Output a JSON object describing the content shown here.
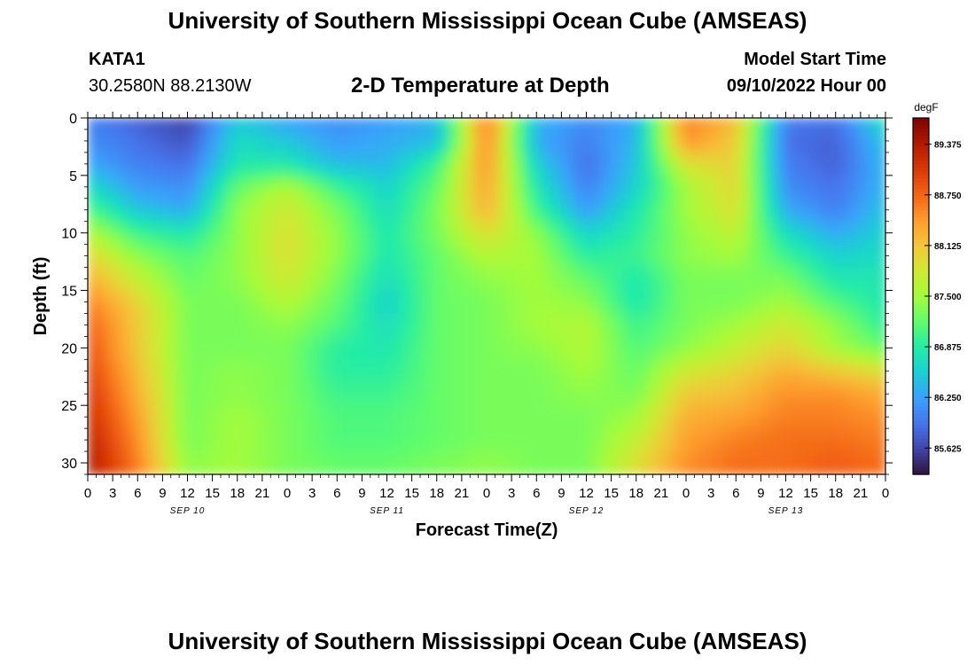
{
  "page": {
    "title": "University of Southern Mississippi Ocean Cube (AMSEAS)",
    "station_id": "KATA1",
    "coordinates": "30.2580N  88.2130W",
    "model_start_label": "Model Start Time",
    "model_start_value": "09/10/2022 Hour 00",
    "footer_title": "University of Southern Mississippi Ocean Cube (AMSEAS)"
  },
  "chart_data": {
    "type": "heatmap",
    "title": "2-D Temperature at Depth",
    "xlabel": "Forecast Time(Z)",
    "ylabel": "Depth (ft)",
    "x_range_hours": [
      0,
      96
    ],
    "x_tick_step_hours": 3,
    "x_tick_labels": [
      "0",
      "3",
      "6",
      "9",
      "12",
      "15",
      "18",
      "21",
      "0",
      "3",
      "6",
      "9",
      "12",
      "15",
      "18",
      "21",
      "0",
      "3",
      "6",
      "9",
      "12",
      "15",
      "18",
      "21",
      "0",
      "3",
      "6",
      "9",
      "12",
      "15",
      "18",
      "21",
      "0"
    ],
    "date_labels": [
      {
        "label": "SEP 10",
        "hour": 12
      },
      {
        "label": "SEP 11",
        "hour": 36
      },
      {
        "label": "SEP 12",
        "hour": 60
      },
      {
        "label": "SEP 13",
        "hour": 84
      }
    ],
    "y_range_ft": [
      0,
      31
    ],
    "y_ticks": [
      0,
      5,
      10,
      15,
      20,
      25,
      30
    ],
    "depths_ft": [
      0,
      2,
      4,
      6,
      8,
      10,
      12,
      14,
      16,
      18,
      20,
      22,
      24,
      26,
      28,
      30
    ],
    "times_hours": [
      0,
      6,
      12,
      18,
      24,
      30,
      36,
      42,
      48,
      54,
      60,
      66,
      72,
      78,
      84,
      90,
      96
    ],
    "values_degF": [
      [
        86.0,
        85.8,
        85.6,
        86.5,
        86.2,
        86.1,
        86.2,
        86.4,
        88.7,
        86.4,
        86.1,
        86.3,
        88.6,
        88.2,
        86.0,
        85.9,
        86.8
      ],
      [
        86.1,
        85.9,
        85.7,
        86.7,
        86.5,
        86.2,
        86.3,
        86.4,
        88.6,
        86.3,
        86.0,
        86.4,
        88.5,
        88.1,
        85.9,
        85.8,
        86.5
      ],
      [
        86.3,
        86.0,
        85.9,
        86.8,
        86.8,
        86.4,
        86.4,
        87.0,
        88.5,
        86.6,
        85.9,
        86.5,
        87.9,
        88.0,
        86.0,
        85.8,
        86.4
      ],
      [
        86.7,
        86.2,
        86.1,
        87.2,
        87.6,
        87.0,
        86.6,
        87.2,
        88.4,
        86.8,
        86.0,
        86.6,
        87.5,
        88.0,
        86.1,
        85.9,
        86.4
      ],
      [
        87.1,
        86.5,
        86.3,
        87.4,
        87.8,
        87.3,
        86.7,
        87.3,
        88.3,
        87.0,
        86.2,
        86.8,
        87.5,
        87.9,
        86.3,
        86.0,
        86.5
      ],
      [
        87.6,
        87.0,
        86.8,
        87.4,
        87.9,
        87.4,
        86.8,
        87.3,
        87.9,
        87.4,
        86.6,
        86.9,
        87.4,
        87.7,
        86.7,
        86.3,
        86.6
      ],
      [
        88.0,
        87.4,
        87.1,
        87.4,
        87.9,
        87.4,
        86.8,
        87.2,
        87.6,
        87.5,
        86.9,
        87.0,
        87.4,
        87.5,
        87.0,
        86.6,
        86.7
      ],
      [
        88.3,
        87.7,
        87.2,
        87.4,
        87.8,
        87.3,
        86.7,
        87.2,
        87.4,
        87.5,
        87.2,
        86.8,
        87.3,
        87.3,
        87.3,
        86.8,
        86.8
      ],
      [
        88.6,
        88.0,
        87.3,
        87.3,
        87.6,
        87.2,
        86.6,
        87.2,
        87.3,
        87.5,
        87.4,
        86.8,
        87.3,
        87.3,
        87.5,
        87.1,
        86.8
      ],
      [
        88.8,
        88.1,
        87.3,
        87.3,
        87.4,
        87.1,
        86.7,
        87.2,
        87.3,
        87.5,
        87.6,
        87.0,
        87.3,
        87.5,
        87.8,
        87.4,
        86.9
      ],
      [
        88.9,
        88.1,
        87.3,
        87.3,
        87.3,
        86.9,
        86.8,
        87.2,
        87.3,
        87.4,
        87.6,
        87.1,
        87.4,
        87.7,
        88.0,
        87.5,
        87.2
      ],
      [
        89.0,
        88.2,
        87.3,
        87.4,
        87.3,
        86.9,
        86.9,
        87.2,
        87.3,
        87.3,
        87.5,
        87.2,
        87.8,
        88.0,
        88.3,
        88.1,
        87.9
      ],
      [
        89.1,
        88.3,
        87.3,
        87.4,
        87.3,
        87.0,
        87.0,
        87.2,
        87.3,
        87.3,
        87.4,
        87.3,
        88.1,
        88.2,
        88.5,
        88.5,
        88.3
      ],
      [
        89.2,
        88.4,
        87.3,
        87.5,
        87.3,
        87.1,
        87.1,
        87.2,
        87.3,
        87.3,
        87.3,
        87.5,
        88.3,
        88.4,
        88.6,
        88.6,
        88.5
      ],
      [
        89.3,
        88.5,
        87.3,
        87.5,
        87.3,
        87.1,
        87.1,
        87.2,
        87.3,
        87.3,
        87.3,
        87.7,
        88.4,
        88.6,
        88.7,
        88.7,
        88.6
      ],
      [
        89.4,
        88.6,
        87.4,
        87.5,
        87.3,
        87.2,
        87.2,
        87.3,
        87.4,
        87.3,
        87.3,
        87.9,
        88.5,
        88.7,
        88.7,
        88.8,
        88.7
      ]
    ],
    "colorbar": {
      "unit": "degF",
      "range": [
        85.3,
        89.7
      ],
      "tick_labels": [
        "89.375",
        "88.750",
        "88.125",
        "87.500",
        "86.875",
        "86.250",
        "85.625"
      ],
      "colormap": [
        "#30123b",
        "#4145ab",
        "#4675ed",
        "#39a2fc",
        "#1bcfd4",
        "#24eca6",
        "#61fc6c",
        "#a4fc3b",
        "#d1e834",
        "#f3c63a",
        "#fe9b2d",
        "#f36315",
        "#d93806",
        "#b11901",
        "#7a0402"
      ]
    }
  }
}
